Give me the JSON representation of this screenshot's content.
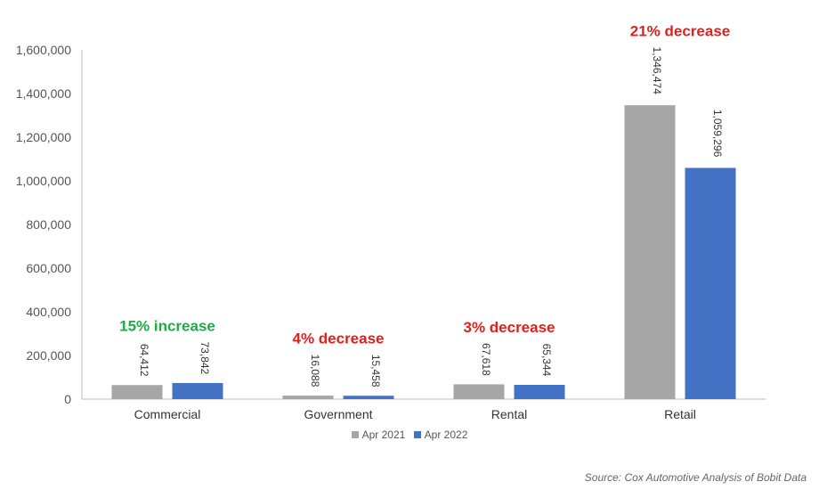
{
  "chart_data": {
    "type": "bar",
    "categories": [
      "Commercial",
      "Government",
      "Rental",
      "Retail"
    ],
    "series": [
      {
        "name": "Apr 2021",
        "color": "#a6a6a6",
        "values": [
          64412,
          16088,
          67618,
          1346474
        ],
        "labels": [
          "64,412",
          "16,088",
          "67,618",
          "1,346,474"
        ]
      },
      {
        "name": "Apr 2022",
        "color": "#4472c4",
        "values": [
          73842,
          15458,
          65344,
          1059296
        ],
        "labels": [
          "73,842",
          "15,458",
          "65,344",
          "1,059,296"
        ]
      }
    ],
    "ylim": [
      0,
      1600000
    ],
    "yticks": [
      "0",
      "200,000",
      "400,000",
      "600,000",
      "800,000",
      "1,000,000",
      "1,200,000",
      "1,400,000",
      "1,600,000"
    ],
    "grid": false,
    "legend_position": "bottom",
    "annotations": [
      {
        "category": "Commercial",
        "text": "15% increase",
        "color": "#22a84a"
      },
      {
        "category": "Government",
        "text": "4% decrease",
        "color": "#e0201c"
      },
      {
        "category": "Rental",
        "text": "3% decrease",
        "color": "#e0201c"
      },
      {
        "category": "Retail",
        "text": "21% decrease",
        "color": "#e0201c"
      }
    ]
  },
  "legend": {
    "items": [
      "Apr 2021",
      "Apr 2022"
    ]
  },
  "source": "Source: Cox Automotive Analysis of Bobit Data"
}
